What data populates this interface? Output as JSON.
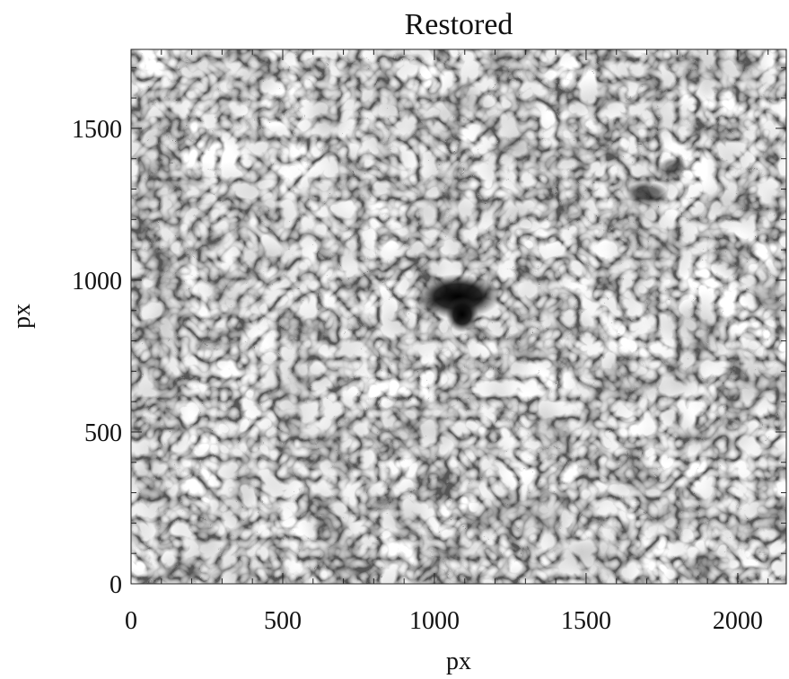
{
  "chart_data": {
    "type": "image",
    "title": "Restored",
    "x_label": "px",
    "y_label": "px",
    "xlim": [
      0,
      2160
    ],
    "ylim": [
      0,
      1760
    ],
    "xticks": [
      0,
      500,
      1000,
      1500,
      2000
    ],
    "yticks": [
      0,
      500,
      1000,
      1500
    ],
    "xminorticks": [
      100,
      200,
      300,
      400,
      600,
      700,
      800,
      900,
      1100,
      1200,
      1300,
      1400,
      1600,
      1700,
      1800,
      1900,
      2100
    ],
    "yminorticks": [
      100,
      200,
      300,
      400,
      600,
      700,
      800,
      900,
      1100,
      1200,
      1300,
      1400,
      1600,
      1700
    ],
    "colormap": "gray"
  }
}
